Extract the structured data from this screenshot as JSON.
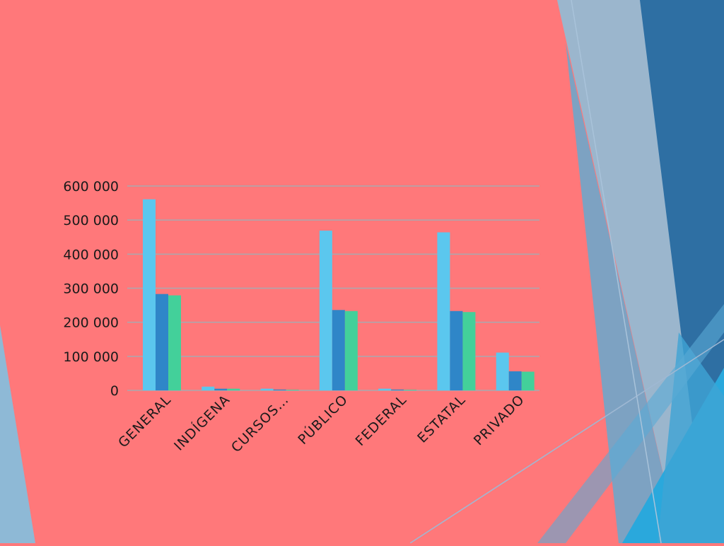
{
  "colors": {
    "background": "#ff787a",
    "series": [
      "#5bc7ee",
      "#2f86c8",
      "#43d09a"
    ],
    "gridline": "#a9a9b0",
    "decor": [
      "#9bb6cd",
      "#2e6fa3",
      "#3f9fd3",
      "#22a6d8"
    ]
  },
  "chart_data": {
    "type": "bar",
    "categories": [
      "GENERAL",
      "INDÍGENA",
      "CURSOS…",
      "PÚBLICO",
      "FEDERAL",
      "ESTATAL",
      "PRIVADO"
    ],
    "series": [
      {
        "values": [
          561000,
          11000,
          5000,
          469000,
          5000,
          464000,
          111000
        ]
      },
      {
        "values": [
          283000,
          5000,
          2500,
          236000,
          2500,
          233000,
          56000
        ]
      },
      {
        "values": [
          279000,
          5000,
          2000,
          233000,
          2000,
          230000,
          55000
        ]
      }
    ],
    "y_ticks": [
      "0",
      "100 000",
      "200 000",
      "300 000",
      "400 000",
      "500 000",
      "600 000"
    ],
    "ylim": [
      0,
      600000
    ],
    "grid": true,
    "legend": "none"
  }
}
